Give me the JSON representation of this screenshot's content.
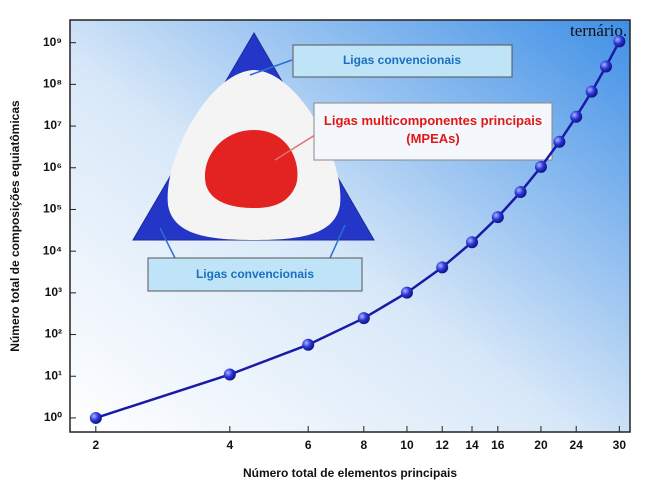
{
  "chart_data": {
    "type": "line",
    "x_label": "Número total de elementos principais",
    "y_label": "Número total de composições equiatômicas",
    "x": [
      2,
      4,
      6,
      8,
      10,
      12,
      14,
      16,
      18,
      20,
      22,
      24,
      26,
      28,
      30
    ],
    "series": [
      {
        "color": "#1a1aa8",
        "values": [
          1,
          11,
          57,
          247,
          1013,
          4083,
          16369,
          65519,
          262125,
          1048555,
          4194281,
          16777191,
          67108837,
          268435427,
          1073741793
        ]
      }
    ],
    "x_log": true,
    "y_log": true,
    "xlim": [
      1.75,
      31.7
    ],
    "ylim": [
      0.46,
      3500000000
    ],
    "xticks": [
      2,
      4,
      6,
      8,
      10,
      12,
      14,
      16,
      20,
      24,
      30
    ],
    "yticks": [
      {
        "value": 1,
        "label": "10⁰"
      },
      {
        "value": 10,
        "label": "10¹"
      },
      {
        "value": 100,
        "label": "10²"
      },
      {
        "value": 1000,
        "label": "10³"
      },
      {
        "value": 10000,
        "label": "10⁴"
      },
      {
        "value": 100000,
        "label": "10⁵"
      },
      {
        "value": 1000000,
        "label": "10⁶"
      },
      {
        "value": 10000000,
        "label": "10⁷"
      },
      {
        "value": 100000000,
        "label": "10⁸"
      },
      {
        "value": 1000000000,
        "label": "10⁹"
      }
    ],
    "annotations": [
      "Ligas convencionais",
      "Ligas multicomponentes principais (MPEAs)",
      "Ligas convencionais",
      "ternário."
    ]
  }
}
